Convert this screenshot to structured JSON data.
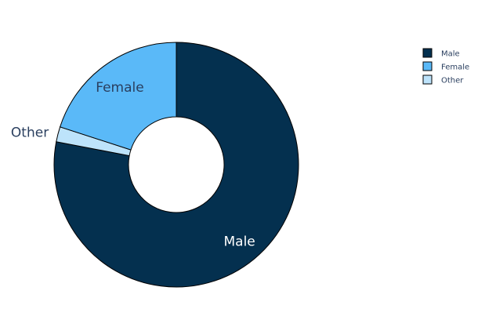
{
  "chart_data": {
    "type": "pie",
    "hole": true,
    "sort": "clockwise from top",
    "slices": [
      {
        "label": "Male",
        "value": 78,
        "color": "#04304f",
        "label_color": "#ffffff",
        "label_position": "inside"
      },
      {
        "label": "Other",
        "value": 2,
        "color": "#bde3fb",
        "label_color": "#2a3f5f",
        "label_position": "outside"
      },
      {
        "label": "Female",
        "value": 20,
        "color": "#5ab9f8",
        "label_color": "#2a3f5f",
        "label_position": "inside"
      }
    ],
    "legend": {
      "position": "top-right",
      "entries": [
        "Male",
        "Female",
        "Other"
      ]
    }
  }
}
